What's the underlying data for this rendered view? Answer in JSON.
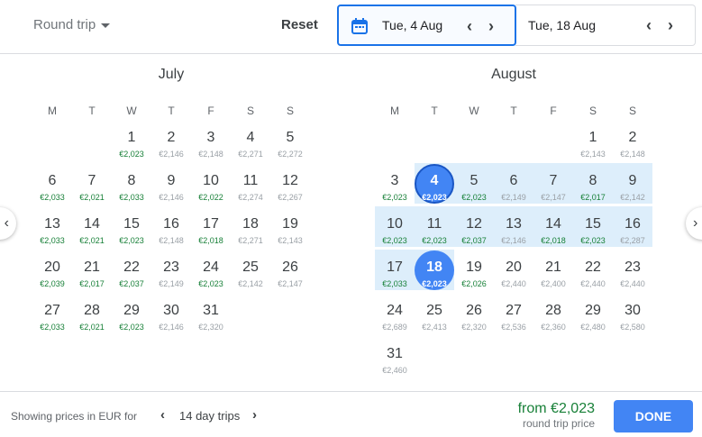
{
  "header": {
    "trip_type": "Round trip",
    "reset": "Reset",
    "depart": "Tue, 4 Aug",
    "return": "Tue, 18 Aug"
  },
  "weekdays": [
    "M",
    "T",
    "W",
    "T",
    "F",
    "S",
    "S"
  ],
  "colors": {
    "accent": "#4285f4",
    "cheap": "#188038",
    "normal": "#9aa0a6",
    "range": "#ddeefb"
  },
  "months": [
    {
      "name": "July",
      "first_weekday": 2,
      "days": [
        [
          "€2,023",
          1
        ],
        [
          "€2,146",
          0
        ],
        [
          "€2,148",
          0
        ],
        [
          "€2,271",
          0
        ],
        [
          "€2,272",
          0
        ],
        [
          "€2,033",
          1
        ],
        [
          "€2,021",
          1
        ],
        [
          "€2,033",
          1
        ],
        [
          "€2,146",
          0
        ],
        [
          "€2,022",
          1
        ],
        [
          "€2,274",
          0
        ],
        [
          "€2,267",
          0
        ],
        [
          "€2,033",
          1
        ],
        [
          "€2,021",
          1
        ],
        [
          "€2,023",
          1
        ],
        [
          "€2,148",
          0
        ],
        [
          "€2,018",
          1
        ],
        [
          "€2,271",
          0
        ],
        [
          "€2,143",
          0
        ],
        [
          "€2,039",
          1
        ],
        [
          "€2,017",
          1
        ],
        [
          "€2,037",
          1
        ],
        [
          "€2,149",
          0
        ],
        [
          "€2,023",
          1
        ],
        [
          "€2,142",
          0
        ],
        [
          "€2,147",
          0
        ],
        [
          "€2,033",
          1
        ],
        [
          "€2,021",
          1
        ],
        [
          "€2,023",
          1
        ],
        [
          "€2,146",
          0
        ],
        [
          "€2,320",
          0
        ]
      ]
    },
    {
      "name": "August",
      "first_weekday": 5,
      "days": [
        [
          "€2,143",
          0
        ],
        [
          "€2,148",
          0
        ],
        [
          "€2,023",
          1
        ],
        [
          "€2,023",
          1
        ],
        [
          "€2,023",
          1
        ],
        [
          "€2,149",
          0
        ],
        [
          "€2,147",
          0
        ],
        [
          "€2,017",
          1
        ],
        [
          "€2,142",
          0
        ],
        [
          "€2,023",
          1
        ],
        [
          "€2,023",
          1
        ],
        [
          "€2,037",
          1
        ],
        [
          "€2,146",
          0
        ],
        [
          "€2,018",
          1
        ],
        [
          "€2,023",
          1
        ],
        [
          "€2,287",
          0
        ],
        [
          "€2,033",
          1
        ],
        [
          "€2,023",
          1
        ],
        [
          "€2,026",
          1
        ],
        [
          "€2,440",
          0
        ],
        [
          "€2,400",
          0
        ],
        [
          "€2,440",
          0
        ],
        [
          "€2,440",
          0
        ],
        [
          "€2,689",
          0
        ],
        [
          "€2,413",
          0
        ],
        [
          "€2,320",
          0
        ],
        [
          "€2,536",
          0
        ],
        [
          "€2,360",
          0
        ],
        [
          "€2,480",
          0
        ],
        [
          "€2,580",
          0
        ],
        [
          "€2,460",
          0
        ]
      ]
    }
  ],
  "selection": {
    "month": 1,
    "start": 4,
    "end": 18
  },
  "footer": {
    "showing": "Showing prices in EUR for",
    "trips": "14 day trips",
    "from": "from €2,023",
    "round_trip": "round trip price",
    "done": "DONE"
  }
}
